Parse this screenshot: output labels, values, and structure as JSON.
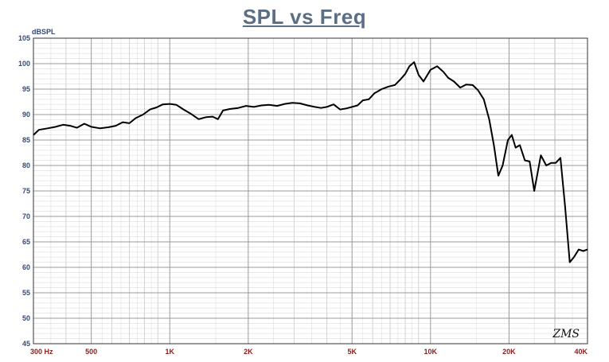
{
  "chart_data": {
    "type": "line",
    "title": "SPL vs Freq",
    "ylabel": "dBSPL",
    "xlabel": "",
    "x_scale": "log",
    "xlim": [
      300,
      40000
    ],
    "ylim": [
      45,
      105
    ],
    "grid": true,
    "yticks": [
      45,
      50,
      55,
      60,
      65,
      70,
      75,
      80,
      85,
      90,
      95,
      100,
      105
    ],
    "xticks": [
      {
        "value": 300,
        "label": "300  Hz"
      },
      {
        "value": 500,
        "label": "500"
      },
      {
        "value": 1000,
        "label": "1K"
      },
      {
        "value": 2000,
        "label": "2K"
      },
      {
        "value": 5000,
        "label": "5K"
      },
      {
        "value": 10000,
        "label": "10K"
      },
      {
        "value": 20000,
        "label": "20K"
      },
      {
        "value": 40000,
        "label": "40K"
      }
    ],
    "series": [
      {
        "color": "#000000",
        "x": [
          300,
          315,
          340,
          365,
          390,
          415,
          440,
          470,
          500,
          540,
          580,
          620,
          660,
          700,
          740,
          790,
          840,
          890,
          940,
          1000,
          1060,
          1130,
          1210,
          1290,
          1380,
          1460,
          1530,
          1600,
          1700,
          1830,
          1960,
          2100,
          2250,
          2400,
          2580,
          2760,
          2950,
          3150,
          3380,
          3600,
          3800,
          4000,
          4250,
          4500,
          4750,
          5000,
          5250,
          5500,
          5800,
          6100,
          6500,
          6900,
          7300,
          7700,
          8000,
          8300,
          8650,
          9000,
          9400,
          10000,
          10600,
          11200,
          11700,
          12300,
          13000,
          13700,
          14500,
          15200,
          16000,
          16800,
          17500,
          18200,
          18900,
          19800,
          20500,
          21200,
          22000,
          23000,
          24000,
          25000,
          26500,
          27800,
          29000,
          30200,
          31500,
          32800,
          34200,
          35500,
          37000,
          38500,
          40000
        ],
        "values": [
          86.0,
          87.0,
          87.3,
          87.6,
          88.0,
          87.8,
          87.4,
          88.2,
          87.6,
          87.3,
          87.5,
          87.8,
          88.5,
          88.3,
          89.3,
          90.0,
          91.0,
          91.4,
          92.0,
          92.1,
          91.9,
          91.0,
          90.1,
          89.1,
          89.5,
          89.6,
          89.1,
          90.8,
          91.1,
          91.3,
          91.7,
          91.5,
          91.8,
          91.9,
          91.7,
          92.1,
          92.3,
          92.2,
          91.8,
          91.5,
          91.3,
          91.5,
          92.0,
          91.0,
          91.2,
          91.5,
          91.8,
          92.8,
          93.0,
          94.2,
          95.0,
          95.5,
          95.8,
          97.0,
          98.0,
          99.5,
          100.3,
          97.8,
          96.5,
          98.8,
          99.5,
          98.4,
          97.2,
          96.5,
          95.3,
          95.9,
          95.8,
          94.8,
          93.0,
          89.0,
          84.0,
          78.0,
          80.0,
          85.0,
          86.0,
          83.5,
          84.0,
          81.0,
          80.8,
          75.0,
          82.0,
          80.0,
          80.5,
          80.5,
          81.5,
          72.0,
          61.0,
          62.0,
          63.5,
          63.2,
          63.5
        ]
      }
    ],
    "signature": "ZMS"
  }
}
